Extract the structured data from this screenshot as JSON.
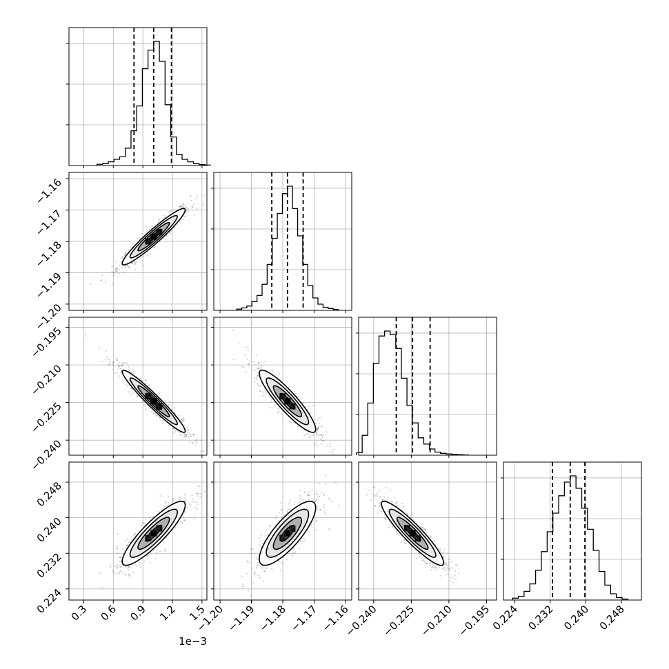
{
  "chart_data": {
    "type": "corner",
    "grid_enabled": true,
    "parameters": [
      {
        "range": [
          0.15,
          1.55
        ],
        "ticks": [
          0.3,
          0.6,
          0.9,
          1.2,
          1.5
        ],
        "tick_labels": [
          "0.3",
          "0.6",
          "0.9",
          "1.2",
          "1.5"
        ],
        "offset_label": "1e−3",
        "quantiles": [
          0.81,
          1.01,
          1.19
        ],
        "median": 1.01,
        "std": 0.16
      },
      {
        "range": [
          -1.202,
          -1.158
        ],
        "ticks": [
          -1.2,
          -1.19,
          -1.18,
          -1.17,
          -1.16
        ],
        "tick_labels": [
          "−1.20",
          "−1.19",
          "−1.18",
          "−1.17",
          "−1.16"
        ],
        "offset_label": "",
        "quantiles": [
          -1.1835,
          -1.1785,
          -1.1735
        ],
        "median": -1.1785,
        "std": 0.0045
      },
      {
        "range": [
          -0.246,
          -0.191
        ],
        "ticks": [
          -0.24,
          -0.225,
          -0.21,
          -0.195
        ],
        "tick_labels": [
          "−0.240",
          "−0.225",
          "−0.210",
          "−0.195"
        ],
        "offset_label": "",
        "quantiles": [
          -0.231,
          -0.2245,
          -0.2175
        ],
        "median": -0.2245,
        "std": 0.0062
      },
      {
        "range": [
          0.2215,
          0.2525
        ],
        "ticks": [
          0.224,
          0.232,
          0.24,
          0.248
        ],
        "tick_labels": [
          "0.224",
          "0.232",
          "0.240",
          "0.248"
        ],
        "offset_label": "",
        "quantiles": [
          0.2325,
          0.2365,
          0.2398
        ],
        "median": 0.2365,
        "std": 0.0036
      }
    ],
    "correlations": {
      "1-0": 0.95,
      "2-0": -0.96,
      "2-1": -0.9,
      "3-0": 0.88,
      "3-1": 0.8,
      "3-2": -0.92
    },
    "histograms": {
      "0": [
        0.01,
        0.015,
        0.03,
        0.05,
        0.07,
        0.14,
        0.28,
        0.48,
        0.78,
        0.93,
        1.0,
        0.84,
        0.49,
        0.23,
        0.09,
        0.05,
        0.03,
        0.015,
        0.008,
        0.004
      ],
      "1": [
        0.01,
        0.02,
        0.035,
        0.07,
        0.12,
        0.21,
        0.37,
        0.58,
        0.78,
        0.94,
        1.0,
        0.82,
        0.6,
        0.37,
        0.2,
        0.1,
        0.05,
        0.025,
        0.015,
        0.007
      ],
      "2": [
        0.02,
        0.16,
        0.42,
        0.74,
        0.96,
        1.0,
        0.97,
        0.86,
        0.62,
        0.4,
        0.26,
        0.14,
        0.09,
        0.05,
        0.025,
        0.015,
        0.01,
        0.006,
        0.004,
        0.002
      ],
      "3": [
        0.015,
        0.03,
        0.07,
        0.13,
        0.24,
        0.39,
        0.55,
        0.7,
        0.84,
        0.95,
        1.0,
        0.9,
        0.74,
        0.57,
        0.4,
        0.23,
        0.12,
        0.05,
        0.02,
        0.008
      ]
    }
  }
}
